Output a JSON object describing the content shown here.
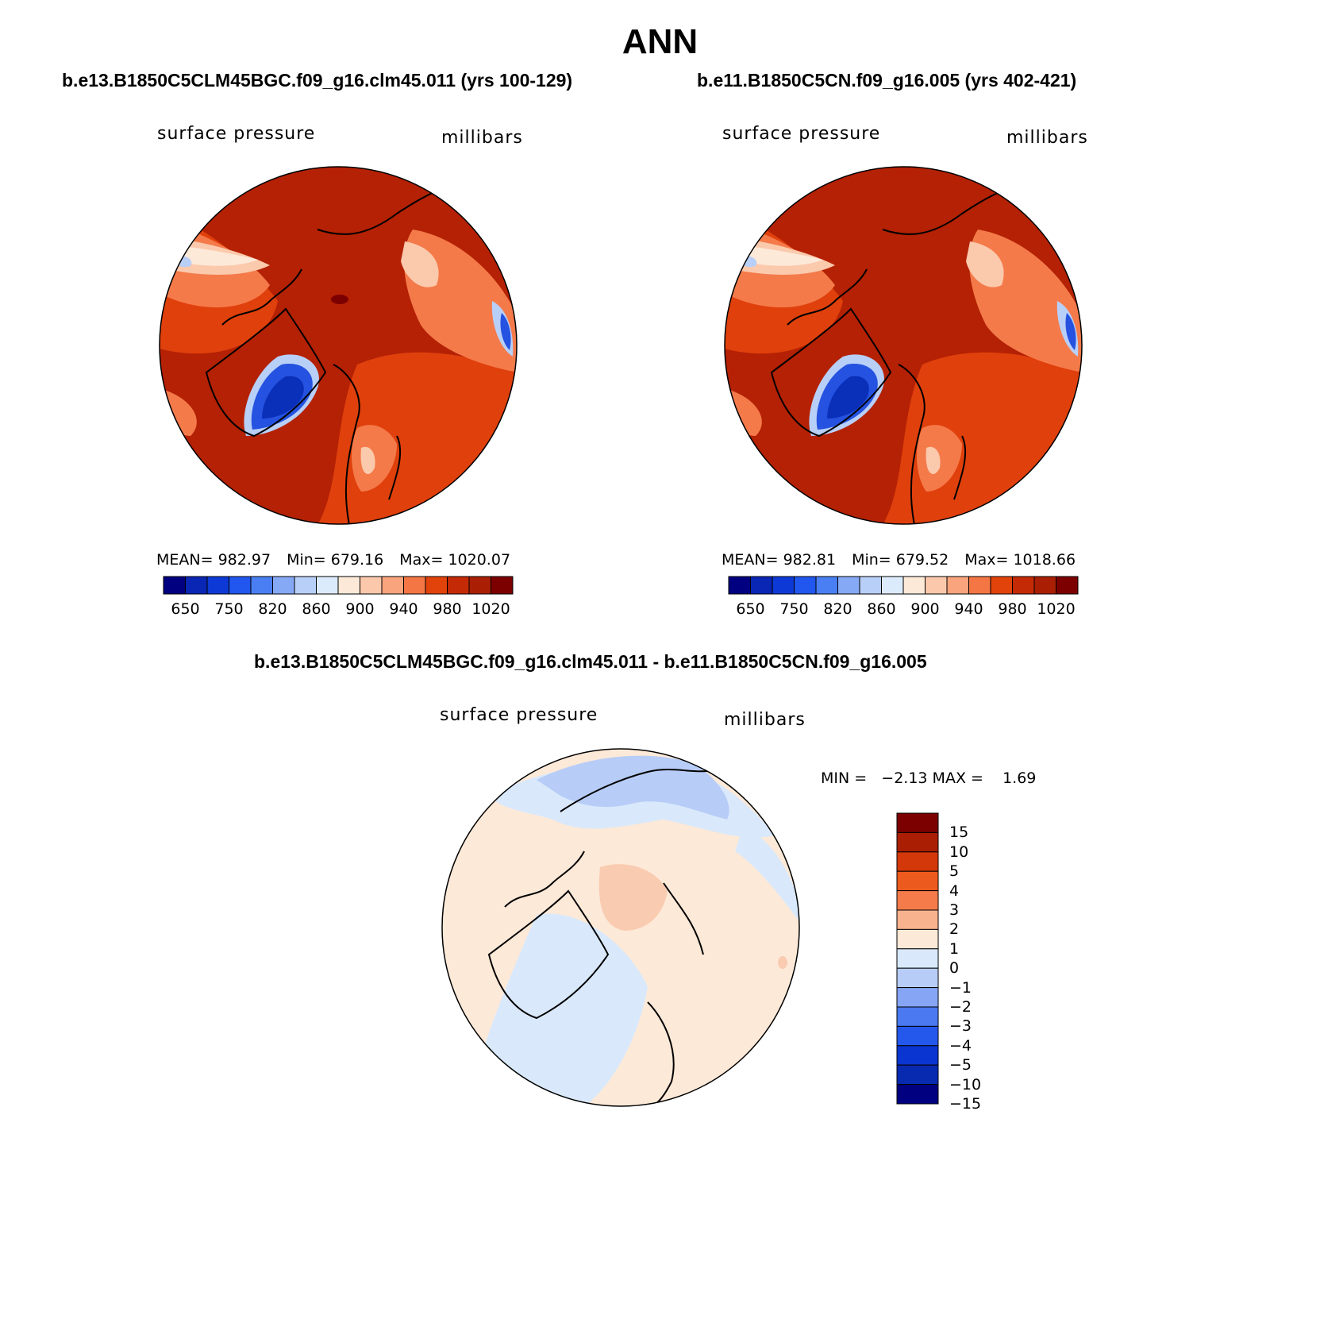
{
  "title": "ANN",
  "panels": [
    {
      "id": "left",
      "case_title": "b.e13.B1850C5CLM45BGC.f09_g16.clm45.011 (yrs 100-129)",
      "variable": "surface pressure",
      "units": "millibars",
      "stats": {
        "mean": "MEAN= 982.97",
        "min": "Min= 679.16",
        "max": "Max= 1020.07"
      }
    },
    {
      "id": "right",
      "case_title": "b.e11.B1850C5CN.f09_g16.005 (yrs 402-421)",
      "variable": "surface pressure",
      "units": "millibars",
      "stats": {
        "mean": "MEAN= 982.81",
        "min": "Min= 679.52",
        "max": "Max= 1018.66"
      }
    },
    {
      "id": "diff",
      "case_title": "b.e13.B1850C5CLM45BGC.f09_g16.clm45.011 - b.e11.B1850C5CN.f09_g16.005",
      "variable": "surface pressure",
      "units": "millibars",
      "stats_text": "MIN =   −2.13 MAX =    1.69"
    }
  ],
  "abs_colorbar": {
    "colors": [
      "#000080",
      "#0a26b4",
      "#0d3ad6",
      "#2157ee",
      "#4a7ff4",
      "#86a9f6",
      "#b8cff8",
      "#dcebfb",
      "#fde9d8",
      "#fbc8ac",
      "#f9a47c",
      "#f57645",
      "#e2430b",
      "#c52a06",
      "#aa1f04",
      "#7d0000"
    ],
    "labels": [
      "650",
      "750",
      "820",
      "860",
      "900",
      "940",
      "980",
      "1020"
    ]
  },
  "diff_colorbar": {
    "colors": [
      "#7d0000",
      "#aa1f04",
      "#d3380a",
      "#ed5a1d",
      "#f57b4a",
      "#f9b28e",
      "#fde9d8",
      "#d9e9fb",
      "#b7cdf7",
      "#86a6f5",
      "#4a79f1",
      "#2457eb",
      "#0a35d0",
      "#082ab0",
      "#000080"
    ],
    "labels": [
      "15",
      "10",
      "5",
      "4",
      "3",
      "2",
      "1",
      "0",
      "−1",
      "−2",
      "−3",
      "−4",
      "−5",
      "−10",
      "−15"
    ]
  },
  "map_colors": {
    "abs_base": "#b42104",
    "abs_mid": "#e0400c",
    "abs_light": "#f47a4a",
    "abs_pale": "#fbc9ac",
    "abs_cream": "#fde9d8",
    "abs_blue": "#2552e0",
    "abs_darkblue": "#0a2fb8",
    "abs_lightblue": "#b8cff8",
    "diff_base": "#fde9d8",
    "diff_blue": "#d9e9fb",
    "diff_blue2": "#b7cdf7",
    "diff_pos": "#f9cbb0"
  }
}
